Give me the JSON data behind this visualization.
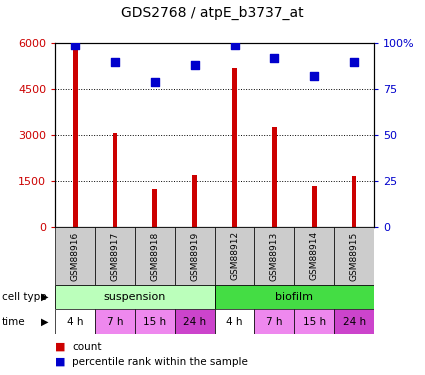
{
  "title": "GDS2768 / atpE_b3737_at",
  "samples": [
    "GSM88916",
    "GSM88917",
    "GSM88918",
    "GSM88919",
    "GSM88912",
    "GSM88913",
    "GSM88914",
    "GSM88915"
  ],
  "counts": [
    5950,
    3050,
    1250,
    1700,
    5200,
    3250,
    1350,
    1650
  ],
  "percentile_ranks": [
    99,
    90,
    79,
    88,
    99,
    92,
    82,
    90
  ],
  "ylim_left": [
    0,
    6000
  ],
  "ylim_right": [
    0,
    100
  ],
  "yticks_left": [
    0,
    1500,
    3000,
    4500,
    6000
  ],
  "yticks_right": [
    0,
    25,
    50,
    75,
    100
  ],
  "bar_color": "#cc0000",
  "dot_color": "#0000cc",
  "suspension_color": "#bbffbb",
  "biofilm_color": "#44dd44",
  "time_colors": [
    "#ffffff",
    "#ee88ee",
    "#ee88ee",
    "#cc44cc",
    "#ffffff",
    "#ee88ee",
    "#ee88ee",
    "#cc44cc"
  ],
  "sample_bg_color": "#cccccc",
  "left_axis_color": "#cc0000",
  "right_axis_color": "#0000cc",
  "bar_width": 0.12,
  "dot_size": 30,
  "times": [
    "4 h",
    "7 h",
    "15 h",
    "24 h",
    "4 h",
    "7 h",
    "15 h",
    "24 h"
  ]
}
